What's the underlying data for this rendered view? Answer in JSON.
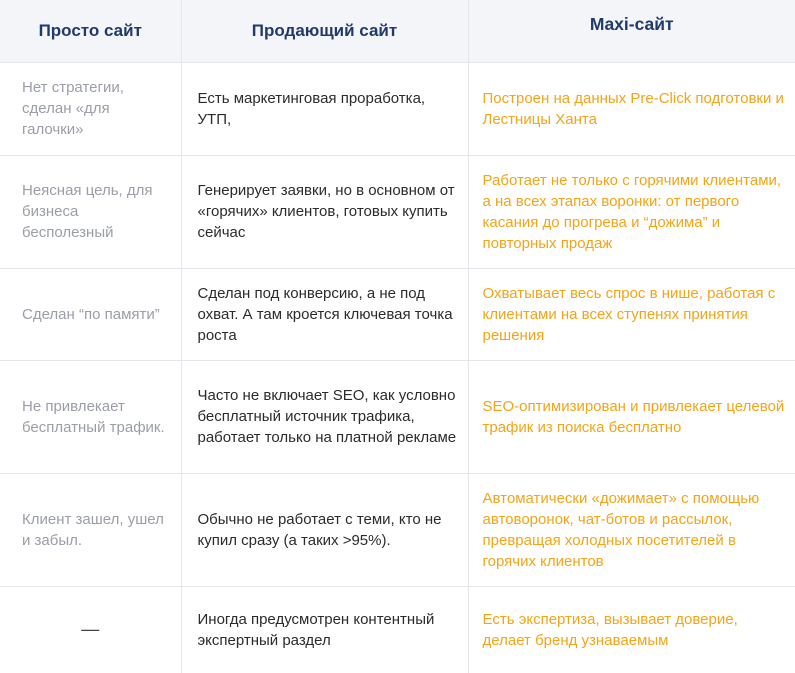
{
  "headers": [
    "Просто сайт",
    "Продающий сайт",
    "Maxi-сайт"
  ],
  "rows": [
    {
      "simple": "Нет стратегии, сделан «для галочки»",
      "selling": "Есть маркетинговая проработка, УТП,",
      "maxi": "Построен на данных Pre-Click подготовки и Лестницы Ханта"
    },
    {
      "simple": "Неясная цель, для бизнеса бесполезный",
      "selling": "Генерирует заявки, но в основном от «горячих» клиентов, готовых купить сейчас",
      "maxi": "Работает не только с горячими клиентами, а на всех этапах воронки: от первого касания до прогрева и “дожима” и повторных продаж"
    },
    {
      "simple": "Сделан “по памяти”",
      "selling": "Сделан под конверсию, а не под охват. А там кроется ключевая точка роста",
      "maxi": "Охватывает весь спрос в нише, работая с клиентами на всех ступенях принятия решения"
    },
    {
      "simple": "Не привлекает бесплатный трафик.",
      "selling": "Часто не включает SEO, как условно бесплатный источник трафика, работает только на платной рекламе",
      "maxi": "SEO-оптимизирован и привлекает целевой трафик из поиска бесплатно"
    },
    {
      "simple": "Клиент зашел, ушел и забыл.",
      "selling": "Обычно не работает с теми, кто не купил сразу (а таких >95%).",
      "maxi": "Автоматически «дожимает» с помощью автоворонок, чат-ботов и рассылок, превращая холодных посетителей в горячих клиентов"
    },
    {
      "simple": "—",
      "selling": "Иногда предусмотрен контентный экспертный раздел",
      "maxi": "Есть экспертиза, вызывает доверие, делает бренд узнаваемым"
    }
  ],
  "colors": {
    "header_text": "#1f3a6b",
    "header_bg": "#f3f5f9",
    "simple_text": "#9a9ea6",
    "selling_text": "#2b2b2b",
    "maxi_text": "#f2a516"
  }
}
